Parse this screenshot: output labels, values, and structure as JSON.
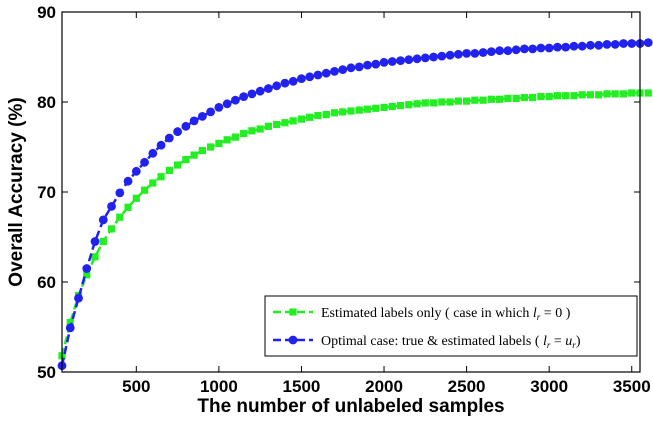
{
  "chart_data": {
    "type": "line",
    "title": "",
    "xlabel": "The number of unlabeled samples",
    "ylabel": "Overall Accuracy (%)",
    "xlim": [
      50,
      3550
    ],
    "ylim": [
      50,
      90
    ],
    "xticks": [
      500,
      1000,
      1500,
      2000,
      2500,
      3000,
      3500
    ],
    "yticks": [
      50,
      60,
      70,
      80,
      90
    ],
    "grid": false,
    "legend_position": "bottom-right",
    "series": [
      {
        "name": "Estimated labels only ( case in which l_r = 0 )",
        "legend_text": "Estimated labels only ( case in which ",
        "legend_math": "l",
        "legend_sub": "r",
        "legend_tail": " = 0 )",
        "color": "#22ee22",
        "marker": "square",
        "x_start": 50,
        "x_step": 50,
        "values": [
          51.8,
          55.5,
          58.5,
          60.8,
          62.8,
          64.5,
          65.9,
          67.2,
          68.3,
          69.3,
          70.2,
          71.0,
          71.7,
          72.4,
          73.0,
          73.6,
          74.1,
          74.6,
          75.0,
          75.4,
          75.8,
          76.1,
          76.5,
          76.8,
          77.0,
          77.3,
          77.5,
          77.7,
          77.9,
          78.1,
          78.3,
          78.5,
          78.6,
          78.8,
          78.9,
          79.0,
          79.1,
          79.2,
          79.3,
          79.4,
          79.5,
          79.6,
          79.7,
          79.8,
          79.9,
          79.9,
          80.0,
          80.0,
          80.1,
          80.1,
          80.2,
          80.2,
          80.3,
          80.3,
          80.4,
          80.4,
          80.5,
          80.5,
          80.6,
          80.6,
          80.7,
          80.7,
          80.7,
          80.8,
          80.8,
          80.8,
          80.9,
          80.9,
          80.9,
          81.0,
          81.0,
          81.0
        ]
      },
      {
        "name": "Optimal case: true & estimated labels ( l_r = u_r )",
        "legend_text": "Optimal case: true & estimated labels ( ",
        "legend_math": "l",
        "legend_sub": "r",
        "legend_tail_math": "u",
        "legend_tail_sub": "r",
        "legend_tail": ")",
        "color": "#2222ee",
        "marker": "circle",
        "x_start": 50,
        "x_step": 50,
        "values": [
          50.7,
          54.9,
          58.2,
          61.5,
          64.5,
          66.9,
          68.4,
          69.9,
          71.2,
          72.3,
          73.3,
          74.3,
          75.2,
          76.0,
          76.7,
          77.3,
          77.9,
          78.4,
          78.9,
          79.4,
          79.8,
          80.2,
          80.6,
          80.9,
          81.2,
          81.5,
          81.8,
          82.1,
          82.3,
          82.6,
          82.8,
          83.0,
          83.2,
          83.4,
          83.6,
          83.8,
          83.9,
          84.1,
          84.2,
          84.4,
          84.5,
          84.6,
          84.7,
          84.8,
          84.9,
          85.0,
          85.1,
          85.2,
          85.3,
          85.4,
          85.4,
          85.5,
          85.6,
          85.7,
          85.7,
          85.8,
          85.9,
          85.9,
          86.0,
          86.0,
          86.1,
          86.1,
          86.2,
          86.2,
          86.3,
          86.3,
          86.4,
          86.4,
          86.5,
          86.5,
          86.5,
          86.6
        ]
      }
    ]
  }
}
